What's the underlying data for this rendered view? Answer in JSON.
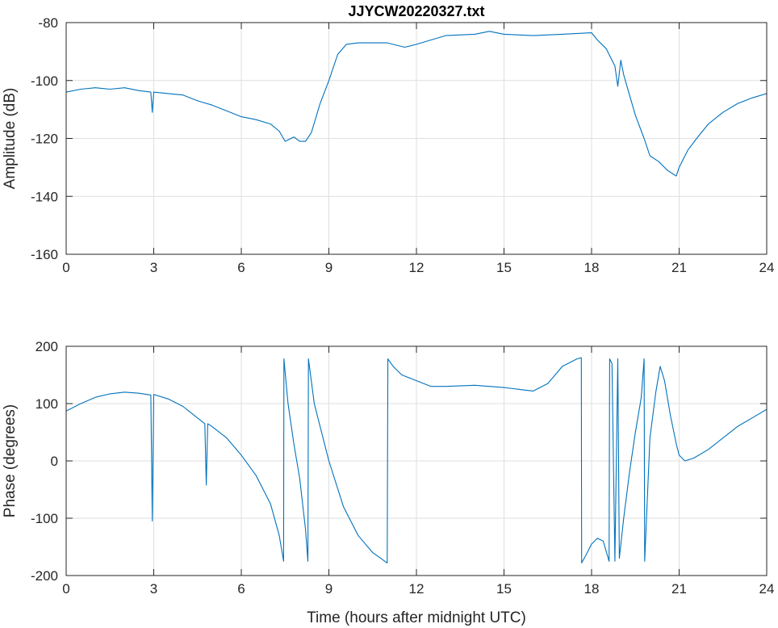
{
  "chart_data": [
    {
      "type": "line",
      "title": "JJYCW20220327.txt",
      "xlabel": "",
      "ylabel": "Amplitude (dB)",
      "xlim": [
        0,
        24
      ],
      "ylim": [
        -160,
        -80
      ],
      "xticks": [
        0,
        3,
        6,
        9,
        12,
        15,
        18,
        21,
        24
      ],
      "yticks": [
        -80,
        -100,
        -120,
        -140,
        -160
      ],
      "xtick_labels": [
        "0",
        "3",
        "6",
        "9",
        "12",
        "15",
        "18",
        "21",
        "24"
      ],
      "ytick_labels": [
        "-80",
        "-100",
        "-120",
        "-140",
        "-160"
      ],
      "grid": true,
      "color": "#0072BD",
      "series": [
        {
          "x": [
            0,
            0.5,
            1,
            1.5,
            2,
            2.5,
            2.9,
            2.95,
            3.0,
            3.5,
            4,
            4.5,
            5,
            5.5,
            6,
            6.5,
            7,
            7.3,
            7.5,
            7.8,
            8.0,
            8.2,
            8.4,
            8.7,
            9.0,
            9.3,
            9.6,
            10,
            11,
            11.6,
            12,
            12.5,
            13,
            14,
            14.5,
            15,
            16,
            17,
            18,
            18.2,
            18.5,
            18.8,
            18.9,
            19.0,
            19.1,
            19.3,
            19.5,
            19.8,
            20.0,
            20.3,
            20.6,
            20.9,
            21.0,
            21.3,
            21.6,
            22.0,
            22.5,
            23.0,
            23.5,
            24
          ],
          "y": [
            -104,
            -103,
            -102.5,
            -103,
            -102.5,
            -103.5,
            -104,
            -111,
            -104,
            -104.5,
            -105,
            -107,
            -108.5,
            -110.5,
            -112.5,
            -113.5,
            -115,
            -117.5,
            -121,
            -119.5,
            -121,
            -121,
            -118,
            -108,
            -100,
            -91,
            -87.5,
            -87,
            -87,
            -88.5,
            -87.5,
            -86,
            -84.5,
            -84,
            -83,
            -84,
            -84.5,
            -84,
            -83.5,
            -86,
            -89,
            -95,
            -102,
            -93,
            -98,
            -105,
            -112,
            -120,
            -126,
            -128,
            -131,
            -133,
            -130,
            -124,
            -120,
            -115,
            -111,
            -108,
            -106,
            -104.5
          ]
        }
      ]
    },
    {
      "type": "line",
      "title": "",
      "xlabel": "Time (hours after midnight UTC)",
      "ylabel": "Phase (degrees)",
      "xlim": [
        0,
        24
      ],
      "ylim": [
        -200,
        200
      ],
      "xticks": [
        0,
        3,
        6,
        9,
        12,
        15,
        18,
        21,
        24
      ],
      "yticks": [
        200,
        100,
        0,
        -100,
        -200
      ],
      "xtick_labels": [
        "0",
        "3",
        "6",
        "9",
        "12",
        "15",
        "18",
        "21",
        "24"
      ],
      "ytick_labels": [
        "200",
        "100",
        "0",
        "-100",
        "-200"
      ],
      "grid": true,
      "color": "#0072BD",
      "series": [
        {
          "x": [
            0,
            0.5,
            1,
            1.5,
            2,
            2.5,
            2.9,
            2.95,
            3.0,
            3.5,
            4,
            4.5,
            4.75,
            4.8,
            4.85,
            5,
            5.5,
            6,
            6.5,
            7,
            7.3,
            7.45,
            7.46,
            7.6,
            7.8,
            8.0,
            8.2,
            8.28,
            8.3,
            8.5,
            9.0,
            9.5,
            10,
            10.5,
            11.0,
            11.02,
            11.2,
            11.5,
            12,
            12.5,
            13,
            14,
            15,
            15.5,
            16,
            16.5,
            17,
            17.5,
            17.65,
            17.66,
            17.8,
            18.0,
            18.2,
            18.4,
            18.6,
            18.62,
            18.7,
            18.8,
            18.9,
            18.95,
            19.1,
            19.3,
            19.5,
            19.7,
            19.8,
            19.82,
            20.0,
            20.2,
            20.3,
            20.35,
            20.5,
            20.7,
            20.9,
            21.0,
            21.2,
            21.5,
            22,
            22.5,
            23,
            23.5,
            24
          ],
          "y": [
            87,
            100,
            111,
            117,
            120,
            118,
            115,
            -105,
            116,
            108,
            95,
            75,
            65,
            -42,
            65,
            60,
            40,
            10,
            -25,
            -75,
            -130,
            -175,
            178,
            100,
            30,
            -30,
            -120,
            -175,
            178,
            100,
            0,
            -80,
            -130,
            -160,
            -178,
            178,
            165,
            150,
            140,
            130,
            130,
            132,
            128,
            125,
            122,
            135,
            165,
            178,
            180,
            -178,
            -165,
            -145,
            -135,
            -140,
            -175,
            178,
            170,
            -175,
            178,
            -170,
            -100,
            -20,
            50,
            110,
            178,
            -175,
            40,
            120,
            150,
            165,
            140,
            80,
            30,
            10,
            0,
            5,
            20,
            40,
            60,
            75,
            90
          ]
        }
      ]
    }
  ]
}
